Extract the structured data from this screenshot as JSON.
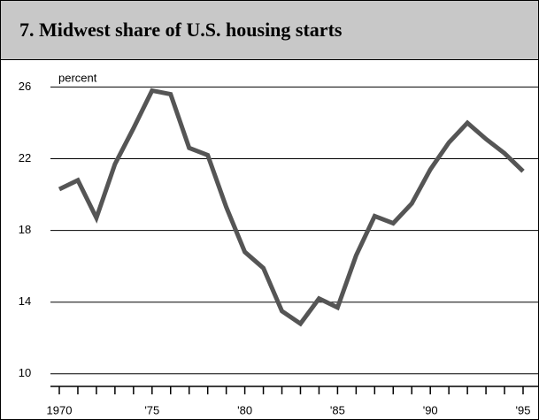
{
  "chart_data": {
    "type": "line",
    "title": "7. Midwest share of U.S. housing starts",
    "y_label": "percent",
    "x": [
      1970,
      1971,
      1972,
      1973,
      1974,
      1975,
      1976,
      1977,
      1978,
      1979,
      1980,
      1981,
      1982,
      1983,
      1984,
      1985,
      1986,
      1987,
      1988,
      1989,
      1990,
      1991,
      1992,
      1993,
      1994,
      1995
    ],
    "series": [
      {
        "name": "Midwest share",
        "color": "#555555",
        "values": [
          20.3,
          20.8,
          18.7,
          21.7,
          23.7,
          25.8,
          25.6,
          22.6,
          22.2,
          19.3,
          16.8,
          15.9,
          13.5,
          12.8,
          14.2,
          13.7,
          16.6,
          18.8,
          18.4,
          19.5,
          21.4,
          22.9,
          24.0,
          23.1,
          22.3,
          21.3
        ]
      }
    ],
    "xlim": [
      1970,
      1995
    ],
    "xticks": [
      {
        "value": 1970,
        "label": "1970"
      },
      {
        "value": 1975,
        "label": "'75"
      },
      {
        "value": 1980,
        "label": "'80"
      },
      {
        "value": 1985,
        "label": "'85"
      },
      {
        "value": 1990,
        "label": "'90"
      },
      {
        "value": 1995,
        "label": "'95"
      }
    ],
    "xminorticks": [
      1970,
      1971,
      1972,
      1973,
      1974,
      1975,
      1976,
      1977,
      1978,
      1979,
      1980,
      1981,
      1982,
      1983,
      1984,
      1985,
      1986,
      1987,
      1988,
      1989,
      1990,
      1991,
      1992,
      1993,
      1994,
      1995
    ],
    "ylim": [
      9.3,
      27.5
    ],
    "yticks": [
      10,
      14,
      18,
      22,
      26
    ],
    "grid": true
  }
}
